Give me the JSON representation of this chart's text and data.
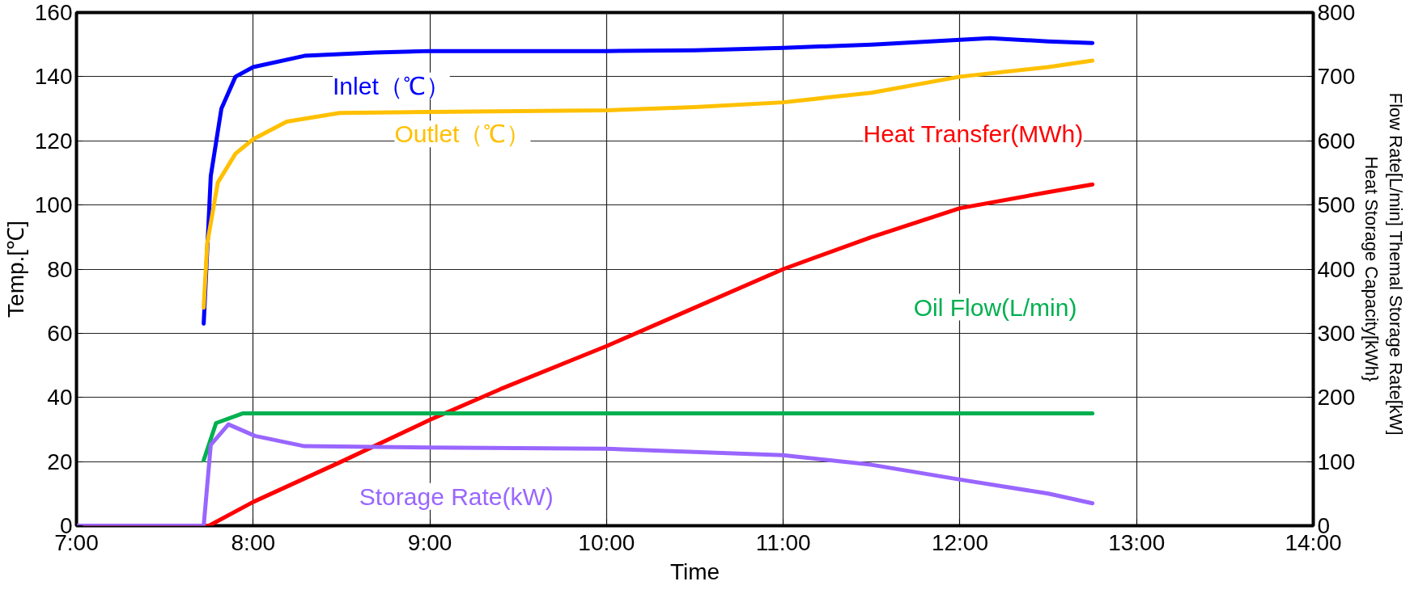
{
  "chart_data": {
    "type": "line",
    "xlabel": "Time",
    "ylabel": "Temp.[℃]",
    "y2label": "Flow Rate[L/min]  Themal Storage  Rate[kW]\nHeat Storage Capacity[kWh}",
    "xlim": [
      7,
      14
    ],
    "xticks": [
      {
        "value": 7,
        "label": "7:00"
      },
      {
        "value": 8,
        "label": "8:00"
      },
      {
        "value": 9,
        "label": "9:00"
      },
      {
        "value": 10,
        "label": "10:00"
      },
      {
        "value": 11,
        "label": "11:00"
      },
      {
        "value": 12,
        "label": "12:00"
      },
      {
        "value": 13,
        "label": "13:00"
      },
      {
        "value": 14,
        "label": "14:00"
      }
    ],
    "ylim": [
      0,
      160
    ],
    "yticks": [
      0,
      20,
      40,
      60,
      80,
      100,
      120,
      140,
      160
    ],
    "y2lim": [
      0,
      800
    ],
    "y2ticks": [
      0,
      100,
      200,
      300,
      400,
      500,
      600,
      700,
      800
    ],
    "grid": true,
    "legend": false,
    "series": [
      {
        "name": "Inlet（℃）",
        "color": "#0000ff",
        "x": [
          7.72,
          7.76,
          7.82,
          7.9,
          8.0,
          8.29,
          8.69,
          9.0,
          10.0,
          10.5,
          11.0,
          11.5,
          12.0,
          12.17,
          12.5,
          12.75
        ],
        "values": [
          63,
          109,
          130,
          140,
          143,
          146.5,
          147.5,
          148,
          148,
          148.2,
          149,
          150,
          151.5,
          152,
          151,
          150.5
        ]
      },
      {
        "name": "Outlet（℃）",
        "color": "#ffc000",
        "x": [
          7.72,
          7.74,
          7.8,
          7.9,
          8.0,
          8.19,
          8.49,
          9.0,
          10.0,
          10.5,
          11.0,
          11.5,
          12.0,
          12.5,
          12.75
        ],
        "values": [
          68,
          88,
          107,
          116,
          120.5,
          126,
          128.7,
          129,
          129.5,
          130.5,
          132,
          135,
          140,
          143,
          145
        ]
      },
      {
        "name": "Heat Transfer(MWh)",
        "color": "#ff0000",
        "axis": "y2",
        "x": [
          7.0,
          7.75,
          8.0,
          8.5,
          9.0,
          9.4,
          10.0,
          10.5,
          11.0,
          11.5,
          12.0,
          12.5,
          12.75
        ],
        "values": [
          0,
          0,
          37,
          100,
          165,
          213,
          280,
          340,
          400,
          450,
          495,
          520,
          532
        ]
      },
      {
        "name": "Oil  Flow(L/min)",
        "color": "#00b050",
        "axis": "y2",
        "x": [
          7.72,
          7.79,
          7.94,
          9.0,
          10.0,
          11.0,
          12.0,
          12.75
        ],
        "values": [
          102,
          160,
          175,
          175,
          175,
          175,
          175,
          175
        ]
      },
      {
        "name": "Storage Rate(kW)",
        "color": "#9966ff",
        "axis": "y2",
        "x": [
          7.0,
          7.72,
          7.76,
          7.86,
          8.01,
          8.29,
          9.0,
          10.0,
          11.0,
          11.5,
          12.0,
          12.5,
          12.75
        ],
        "values": [
          0,
          0,
          126,
          158,
          140,
          124,
          122,
          120,
          110,
          95,
          72,
          50,
          35
        ]
      }
    ]
  }
}
